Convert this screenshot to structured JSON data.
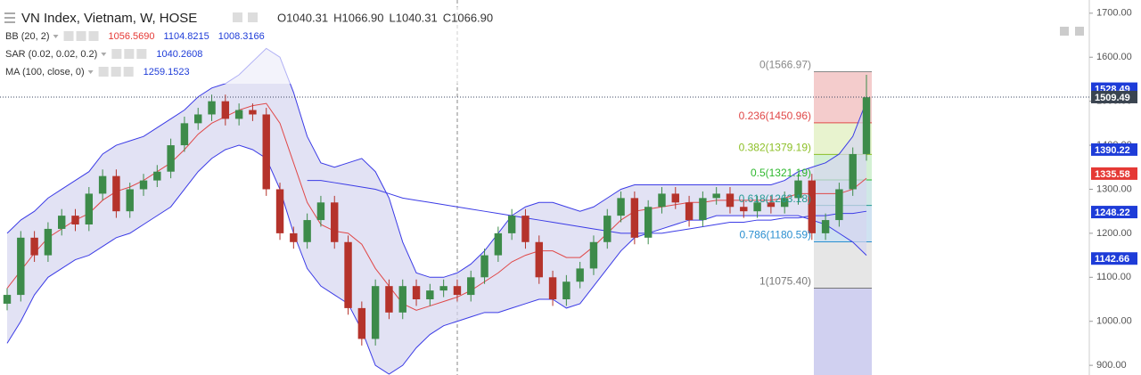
{
  "chart_data": {
    "type": "candlestick",
    "title": "VN Index, Vietnam, W, HOSE",
    "ohlc": [
      "O1040.31",
      "H1066.90",
      "L1040.31",
      "C1066.90"
    ],
    "indicators": [
      {
        "name": "BB (20, 2)",
        "values": [
          "1056.5690",
          "1104.8215",
          "1008.3166"
        ],
        "colors": [
          "#e53935",
          "#1e3cd8",
          "#1e3cd8"
        ]
      },
      {
        "name": "SAR (0.02, 0.02, 0.2)",
        "values": [
          "1040.2608"
        ],
        "colors": [
          "#1e3cd8"
        ]
      },
      {
        "name": "MA (100, close, 0)",
        "values": [
          "1259.1523"
        ],
        "colors": [
          "#1e3cd8"
        ]
      }
    ],
    "candles": {
      "up_color": "#3d8b4a",
      "down_color": "#b5332b",
      "open": [
        1040,
        1060,
        1190,
        1150,
        1210,
        1240,
        1220,
        1290,
        1330,
        1250,
        1300,
        1320,
        1340,
        1400,
        1450,
        1470,
        1500,
        1460,
        1480,
        1470,
        1300,
        1200,
        1180,
        1230,
        1270,
        1180,
        1030,
        960,
        1080,
        1020,
        1080,
        1050,
        1070,
        1080,
        1060,
        1100,
        1150,
        1200,
        1240,
        1180,
        1100,
        1050,
        1090,
        1120,
        1180,
        1240,
        1280,
        1190,
        1260,
        1290,
        1270,
        1230,
        1280,
        1290,
        1260,
        1250,
        1270,
        1260,
        1280,
        1320,
        1200,
        1230,
        1300,
        1380
      ],
      "high": [
        1075,
        1205,
        1205,
        1225,
        1255,
        1255,
        1305,
        1345,
        1345,
        1315,
        1335,
        1355,
        1415,
        1465,
        1485,
        1515,
        1515,
        1495,
        1495,
        1485,
        1315,
        1215,
        1245,
        1285,
        1285,
        1195,
        1045,
        1095,
        1095,
        1095,
        1095,
        1085,
        1095,
        1095,
        1115,
        1165,
        1215,
        1255,
        1255,
        1195,
        1115,
        1105,
        1135,
        1195,
        1255,
        1295,
        1295,
        1275,
        1305,
        1305,
        1285,
        1295,
        1305,
        1305,
        1275,
        1285,
        1285,
        1295,
        1335,
        1335,
        1245,
        1315,
        1395,
        1560
      ],
      "low": [
        1025,
        1045,
        1135,
        1135,
        1195,
        1205,
        1205,
        1275,
        1235,
        1235,
        1285,
        1305,
        1325,
        1385,
        1435,
        1455,
        1445,
        1445,
        1455,
        1285,
        1185,
        1165,
        1165,
        1215,
        1165,
        1015,
        945,
        945,
        1005,
        1005,
        1035,
        1035,
        1055,
        1045,
        1045,
        1085,
        1135,
        1185,
        1165,
        1085,
        1035,
        1035,
        1075,
        1105,
        1165,
        1225,
        1175,
        1175,
        1245,
        1255,
        1215,
        1215,
        1265,
        1245,
        1235,
        1235,
        1245,
        1245,
        1265,
        1185,
        1185,
        1215,
        1285,
        1365
      ],
      "close": [
        1060,
        1190,
        1150,
        1210,
        1240,
        1220,
        1290,
        1330,
        1250,
        1300,
        1320,
        1340,
        1400,
        1450,
        1470,
        1500,
        1460,
        1480,
        1470,
        1300,
        1200,
        1180,
        1230,
        1270,
        1180,
        1030,
        960,
        1080,
        1020,
        1080,
        1050,
        1070,
        1080,
        1060,
        1100,
        1150,
        1200,
        1240,
        1180,
        1100,
        1050,
        1090,
        1120,
        1180,
        1240,
        1280,
        1190,
        1260,
        1290,
        1270,
        1230,
        1280,
        1290,
        1260,
        1250,
        1270,
        1260,
        1280,
        1320,
        1200,
        1230,
        1300,
        1380,
        1509
      ]
    },
    "bands": {
      "color": "#3b3be6",
      "fill": "#d5d5ef",
      "basis_color": "#e04848",
      "upper": [
        1200,
        1230,
        1250,
        1280,
        1300,
        1320,
        1340,
        1380,
        1400,
        1410,
        1420,
        1440,
        1460,
        1480,
        1510,
        1530,
        1540,
        1560,
        1590,
        1620,
        1600,
        1520,
        1420,
        1360,
        1350,
        1360,
        1370,
        1340,
        1280,
        1180,
        1110,
        1100,
        1100,
        1110,
        1130,
        1160,
        1200,
        1240,
        1260,
        1270,
        1270,
        1260,
        1250,
        1260,
        1280,
        1300,
        1310,
        1310,
        1310,
        1310,
        1310,
        1310,
        1310,
        1310,
        1310,
        1310,
        1310,
        1320,
        1340,
        1350,
        1360,
        1380,
        1420,
        1500
      ],
      "lower": [
        950,
        1000,
        1060,
        1100,
        1120,
        1140,
        1150,
        1170,
        1190,
        1200,
        1220,
        1240,
        1260,
        1300,
        1340,
        1370,
        1390,
        1400,
        1390,
        1370,
        1300,
        1200,
        1120,
        1080,
        1060,
        1040,
        980,
        900,
        880,
        900,
        940,
        970,
        990,
        1000,
        1010,
        1020,
        1020,
        1030,
        1040,
        1050,
        1050,
        1030,
        1040,
        1080,
        1120,
        1160,
        1190,
        1200,
        1210,
        1220,
        1230,
        1230,
        1240,
        1240,
        1240,
        1240,
        1240,
        1240,
        1240,
        1230,
        1220,
        1200,
        1180,
        1150
      ],
      "basis": [
        1075,
        1115,
        1155,
        1190,
        1210,
        1230,
        1245,
        1275,
        1295,
        1305,
        1320,
        1340,
        1360,
        1390,
        1425,
        1450,
        1465,
        1480,
        1490,
        1495,
        1450,
        1360,
        1270,
        1220,
        1205,
        1200,
        1175,
        1120,
        1080,
        1040,
        1025,
        1035,
        1045,
        1055,
        1070,
        1090,
        1110,
        1135,
        1150,
        1160,
        1160,
        1145,
        1145,
        1170,
        1200,
        1230,
        1250,
        1255,
        1260,
        1265,
        1270,
        1270,
        1275,
        1275,
        1275,
        1275,
        1275,
        1280,
        1290,
        1290,
        1290,
        1290,
        1300,
        1325
      ]
    },
    "ma": {
      "color": "#3b3be6",
      "values": [
        null,
        null,
        null,
        null,
        null,
        null,
        null,
        null,
        null,
        null,
        null,
        null,
        null,
        null,
        null,
        null,
        null,
        null,
        null,
        null,
        null,
        null,
        1320,
        1320,
        1315,
        1310,
        1305,
        1300,
        1290,
        1280,
        1275,
        1270,
        1265,
        1260,
        1255,
        1250,
        1245,
        1240,
        1235,
        1230,
        1225,
        1220,
        1215,
        1210,
        1205,
        1200,
        1200,
        1200,
        1200,
        1205,
        1210,
        1215,
        1220,
        1225,
        1225,
        1230,
        1230,
        1235,
        1235,
        1240,
        1240,
        1245,
        1245,
        1250
      ]
    },
    "ylim": [
      878,
      1730
    ],
    "yticks": [
      {
        "value": 900,
        "label": "900.00"
      },
      {
        "value": 1000,
        "label": "1000.00"
      },
      {
        "value": 1100,
        "label": "1100.00"
      },
      {
        "value": 1200,
        "label": "1200.00"
      },
      {
        "value": 1300,
        "label": "1300.00"
      },
      {
        "value": 1400,
        "label": "1400.00"
      },
      {
        "value": 1500,
        "label": "1500.00"
      },
      {
        "value": 1600,
        "label": "1600.00"
      },
      {
        "value": 1700,
        "label": "1700.00"
      }
    ],
    "price_tags": [
      {
        "value": 1528.49,
        "label": "1528.49",
        "color": "#1e3cd8"
      },
      {
        "value": 1509.49,
        "label": "1509.49",
        "color": "#3a4450"
      },
      {
        "value": 1390.22,
        "label": "1390.22",
        "color": "#1e3cd8"
      },
      {
        "value": 1335.58,
        "label": "1335.58",
        "color": "#e53935"
      },
      {
        "value": 1248.22,
        "label": "1248.22",
        "color": "#1e3cd8"
      },
      {
        "value": 1142.66,
        "label": "1142.66",
        "color": "#1e3cd8"
      }
    ],
    "last_price": 1509.49,
    "fib": [
      {
        "value": 1566.97,
        "label": "0(1566.97)",
        "color": "#888888",
        "fill": "#f4cccc"
      },
      {
        "value": 1450.96,
        "label": "0.236(1450.96)",
        "color": "#e04848",
        "fill": "#e8f3cf"
      },
      {
        "value": 1379.19,
        "label": "0.382(1379.19)",
        "color": "#8cbf26",
        "fill": "#d3f0d3"
      },
      {
        "value": 1321.19,
        "label": "0.5(1321.19)",
        "color": "#2eb82e",
        "fill": "#cfe8e6"
      },
      {
        "value": 1263.18,
        "label": "0.618(1263.18)",
        "color": "#259a94",
        "fill": "#cfe2f1"
      },
      {
        "value": 1180.59,
        "label": "0.786(1180.59)",
        "color": "#2a8fd0",
        "fill": "#e6e6e6"
      },
      {
        "value": 1075.4,
        "label": "1(1075.40)",
        "color": "#777777",
        "fill": "#d0d0f0"
      }
    ]
  }
}
